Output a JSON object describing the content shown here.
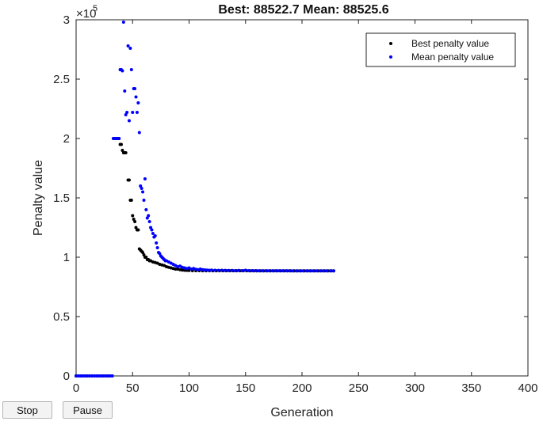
{
  "controls": {
    "stop_label": "Stop",
    "pause_label": "Pause"
  },
  "chart_data": {
    "type": "scatter",
    "title": "Best: 88522.7 Mean: 88525.6",
    "xlabel": "Generation",
    "ylabel": "Penalty value",
    "y_exponent_label": "×10",
    "y_exponent": "5",
    "xlim": [
      0,
      400
    ],
    "ylim": [
      0,
      300000
    ],
    "x_ticks": [
      0,
      50,
      100,
      150,
      200,
      250,
      300,
      350,
      400
    ],
    "y_ticks": [
      0,
      50000,
      100000,
      150000,
      200000,
      250000,
      300000
    ],
    "y_tick_labels": [
      "0",
      "0.5",
      "1",
      "1.5",
      "2",
      "2.5",
      "3"
    ],
    "legend_position": "top-right",
    "series": [
      {
        "name": "Best penalty value",
        "color": "#000000",
        "points": [
          [
            0,
            0
          ],
          [
            2,
            0
          ],
          [
            4,
            0
          ],
          [
            6,
            0
          ],
          [
            8,
            0
          ],
          [
            10,
            0
          ],
          [
            12,
            0
          ],
          [
            14,
            0
          ],
          [
            16,
            0
          ],
          [
            18,
            0
          ],
          [
            20,
            0
          ],
          [
            22,
            0
          ],
          [
            24,
            0
          ],
          [
            26,
            0
          ],
          [
            28,
            0
          ],
          [
            30,
            0
          ],
          [
            32,
            0
          ],
          [
            33,
            200000
          ],
          [
            34,
            200000
          ],
          [
            35,
            200000
          ],
          [
            36,
            200000
          ],
          [
            37,
            200000
          ],
          [
            38,
            200000
          ],
          [
            39,
            195000
          ],
          [
            40,
            195000
          ],
          [
            41,
            190000
          ],
          [
            42,
            188000
          ],
          [
            43,
            188000
          ],
          [
            44,
            188000
          ],
          [
            46,
            165000
          ],
          [
            47,
            165000
          ],
          [
            48,
            148000
          ],
          [
            49,
            148000
          ],
          [
            50,
            135000
          ],
          [
            51,
            132000
          ],
          [
            52,
            130000
          ],
          [
            53,
            125000
          ],
          [
            54,
            123000
          ],
          [
            55,
            123000
          ],
          [
            56,
            107000
          ],
          [
            57,
            106000
          ],
          [
            58,
            105000
          ],
          [
            59,
            104000
          ],
          [
            60,
            102000
          ],
          [
            61,
            100000
          ],
          [
            62,
            100000
          ],
          [
            63,
            98000
          ],
          [
            64,
            98000
          ],
          [
            65,
            97000
          ],
          [
            66,
            97000
          ],
          [
            68,
            96000
          ],
          [
            70,
            95500
          ],
          [
            72,
            95000
          ],
          [
            74,
            94000
          ],
          [
            76,
            93500
          ],
          [
            78,
            93000
          ],
          [
            80,
            92000
          ],
          [
            82,
            91500
          ],
          [
            84,
            91000
          ],
          [
            86,
            90500
          ],
          [
            88,
            90000
          ],
          [
            90,
            90000
          ],
          [
            92,
            89500
          ],
          [
            94,
            89200
          ],
          [
            96,
            89000
          ],
          [
            98,
            88900
          ],
          [
            100,
            88800
          ],
          [
            103,
            88700
          ],
          [
            106,
            88700
          ],
          [
            109,
            88650
          ],
          [
            112,
            88600
          ],
          [
            115,
            88600
          ],
          [
            118,
            88600
          ],
          [
            121,
            88580
          ],
          [
            124,
            88580
          ],
          [
            127,
            88570
          ],
          [
            130,
            88570
          ],
          [
            133,
            88560
          ],
          [
            136,
            88560
          ],
          [
            139,
            88550
          ],
          [
            142,
            88550
          ],
          [
            145,
            88550
          ],
          [
            148,
            88545
          ],
          [
            151,
            88545
          ],
          [
            154,
            88540
          ],
          [
            157,
            88540
          ],
          [
            160,
            88540
          ],
          [
            163,
            88535
          ],
          [
            166,
            88535
          ],
          [
            169,
            88535
          ],
          [
            172,
            88530
          ],
          [
            175,
            88530
          ],
          [
            178,
            88530
          ],
          [
            181,
            88530
          ],
          [
            184,
            88528
          ],
          [
            187,
            88528
          ],
          [
            190,
            88527
          ],
          [
            193,
            88527
          ],
          [
            196,
            88526
          ],
          [
            199,
            88526
          ],
          [
            202,
            88525
          ],
          [
            205,
            88525
          ],
          [
            208,
            88524
          ],
          [
            211,
            88524
          ],
          [
            214,
            88523
          ],
          [
            217,
            88523
          ],
          [
            220,
            88523
          ],
          [
            223,
            88523
          ],
          [
            226,
            88522.7
          ],
          [
            228,
            88522.7
          ]
        ]
      },
      {
        "name": "Mean penalty value",
        "color": "#0000ff",
        "points": [
          [
            0,
            0
          ],
          [
            2,
            0
          ],
          [
            4,
            0
          ],
          [
            6,
            0
          ],
          [
            8,
            0
          ],
          [
            10,
            0
          ],
          [
            12,
            0
          ],
          [
            14,
            0
          ],
          [
            16,
            0
          ],
          [
            18,
            0
          ],
          [
            20,
            0
          ],
          [
            22,
            0
          ],
          [
            24,
            0
          ],
          [
            26,
            0
          ],
          [
            28,
            0
          ],
          [
            30,
            0
          ],
          [
            32,
            0
          ],
          [
            33,
            200000
          ],
          [
            34,
            200000
          ],
          [
            35,
            200000
          ],
          [
            36,
            200000
          ],
          [
            37,
            200000
          ],
          [
            38,
            200000
          ],
          [
            39,
            258000
          ],
          [
            40,
            258000
          ],
          [
            41,
            257000
          ],
          [
            42,
            298000
          ],
          [
            43,
            240000
          ],
          [
            44,
            220000
          ],
          [
            45,
            222000
          ],
          [
            46,
            278000
          ],
          [
            47,
            215000
          ],
          [
            48,
            276000
          ],
          [
            49,
            258000
          ],
          [
            50,
            222000
          ],
          [
            51,
            242000
          ],
          [
            52,
            242000
          ],
          [
            53,
            235000
          ],
          [
            54,
            222000
          ],
          [
            55,
            230000
          ],
          [
            56,
            205000
          ],
          [
            57,
            160000
          ],
          [
            58,
            158000
          ],
          [
            59,
            155000
          ],
          [
            60,
            148000
          ],
          [
            61,
            166000
          ],
          [
            62,
            140000
          ],
          [
            63,
            133000
          ],
          [
            64,
            135000
          ],
          [
            65,
            130000
          ],
          [
            66,
            125000
          ],
          [
            67,
            123000
          ],
          [
            68,
            120000
          ],
          [
            69,
            117000
          ],
          [
            70,
            118000
          ],
          [
            71,
            112000
          ],
          [
            72,
            108000
          ],
          [
            73,
            104000
          ],
          [
            74,
            103000
          ],
          [
            75,
            101000
          ],
          [
            76,
            100000
          ],
          [
            77,
            99000
          ],
          [
            78,
            98000
          ],
          [
            79,
            97000
          ],
          [
            80,
            97000
          ],
          [
            82,
            96000
          ],
          [
            84,
            95000
          ],
          [
            86,
            94000
          ],
          [
            88,
            93000
          ],
          [
            90,
            92000
          ],
          [
            92,
            92500
          ],
          [
            94,
            91500
          ],
          [
            96,
            91000
          ],
          [
            98,
            90500
          ],
          [
            100,
            91000
          ],
          [
            102,
            90000
          ],
          [
            104,
            90500
          ],
          [
            106,
            89800
          ],
          [
            108,
            89500
          ],
          [
            110,
            90000
          ],
          [
            112,
            89500
          ],
          [
            114,
            89300
          ],
          [
            116,
            89200
          ],
          [
            118,
            89000
          ],
          [
            120,
            89200
          ],
          [
            123,
            89000
          ],
          [
            126,
            88900
          ],
          [
            129,
            89000
          ],
          [
            132,
            88900
          ],
          [
            135,
            88800
          ],
          [
            138,
            88800
          ],
          [
            141,
            88700
          ],
          [
            144,
            88800
          ],
          [
            147,
            88700
          ],
          [
            150,
            89000
          ],
          [
            153,
            88700
          ],
          [
            156,
            88650
          ],
          [
            159,
            88650
          ],
          [
            162,
            88600
          ],
          [
            165,
            88600
          ],
          [
            168,
            88600
          ],
          [
            171,
            88580
          ],
          [
            174,
            88580
          ],
          [
            177,
            88570
          ],
          [
            180,
            88560
          ],
          [
            183,
            88560
          ],
          [
            186,
            88550
          ],
          [
            189,
            88550
          ],
          [
            192,
            88540
          ],
          [
            195,
            88540
          ],
          [
            198,
            88535
          ],
          [
            201,
            88535
          ],
          [
            204,
            88530
          ],
          [
            207,
            88530
          ],
          [
            210,
            88528
          ],
          [
            213,
            88528
          ],
          [
            216,
            88527
          ],
          [
            219,
            88527
          ],
          [
            222,
            88526
          ],
          [
            225,
            88526
          ],
          [
            228,
            88525.6
          ]
        ]
      }
    ]
  }
}
